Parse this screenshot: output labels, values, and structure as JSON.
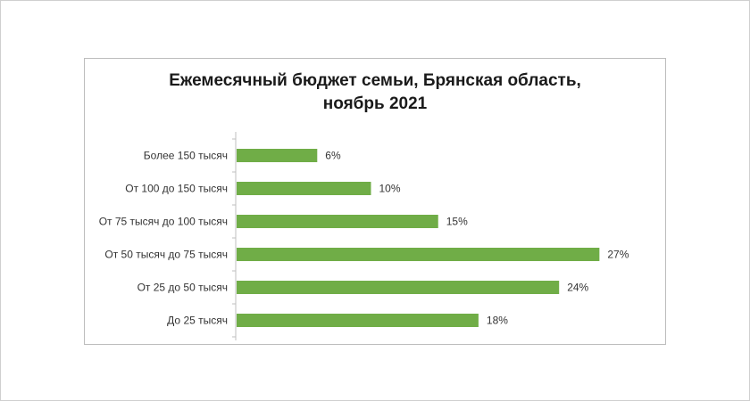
{
  "chart_data": {
    "type": "bar",
    "orientation": "horizontal",
    "title_lines": [
      "Ежемесячный бюджет семьи, Брянская область,",
      "ноябрь 2021"
    ],
    "categories": [
      "Более 150 тысяч",
      "От 100 до 150 тысяч",
      "От 75 тысяч до 100 тысяч",
      "От 50 тысяч до 75 тысяч",
      "От 25 до 50 тысяч",
      "До 25 тысяч"
    ],
    "values": [
      6,
      10,
      15,
      27,
      24,
      18
    ],
    "value_labels": [
      "6%",
      "10%",
      "15%",
      "27%",
      "24%",
      "18%"
    ],
    "unit": "%",
    "xlim": [
      0,
      28
    ],
    "grid": false,
    "bar_color": "#70ad47"
  }
}
